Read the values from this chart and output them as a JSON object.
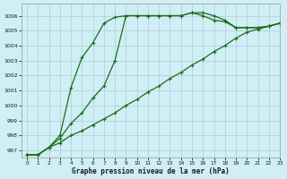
{
  "xlabel": "Graphe pression niveau de la mer (hPa)",
  "bg_color": "#d0eef5",
  "grid_color": "#b0ccd8",
  "line_color": "#1a6e1a",
  "xlim": [
    -0.5,
    23
  ],
  "ylim": [
    996.5,
    1006.8
  ],
  "xticks": [
    0,
    1,
    2,
    3,
    4,
    5,
    6,
    7,
    8,
    9,
    10,
    11,
    12,
    13,
    14,
    15,
    16,
    17,
    18,
    19,
    20,
    21,
    22,
    23
  ],
  "yticks": [
    997,
    998,
    999,
    1000,
    1001,
    1002,
    1003,
    1004,
    1005,
    1006
  ],
  "series1_x": [
    0,
    1,
    2,
    3,
    4,
    5,
    6,
    7,
    8,
    9,
    10,
    11,
    12,
    13,
    14,
    15,
    16,
    17,
    18,
    19,
    20,
    21,
    22,
    23
  ],
  "series1_y": [
    996.7,
    996.7,
    997.2,
    997.8,
    998.8,
    999.5,
    1000.5,
    1001.3,
    1003.0,
    1006.0,
    1006.0,
    1006.0,
    1006.0,
    1006.0,
    1006.0,
    1006.2,
    1006.2,
    1006.0,
    1005.7,
    1005.2,
    1005.2,
    1005.2,
    1005.3,
    1005.5
  ],
  "series2_x": [
    0,
    1,
    2,
    3,
    4,
    5,
    6,
    7,
    8,
    9,
    10,
    11,
    12,
    13,
    14,
    15,
    16,
    17,
    18,
    19,
    20,
    21,
    22,
    23
  ],
  "series2_y": [
    996.7,
    996.7,
    997.2,
    998.0,
    1001.2,
    1003.2,
    1004.2,
    1005.5,
    1005.9,
    1006.0,
    1006.0,
    1006.0,
    1006.0,
    1006.0,
    1006.0,
    1006.2,
    1006.0,
    1005.7,
    1005.6,
    1005.2,
    1005.2,
    1005.2,
    1005.3,
    1005.5
  ],
  "series3_x": [
    0,
    1,
    2,
    3,
    4,
    5,
    6,
    7,
    8,
    9,
    10,
    11,
    12,
    13,
    14,
    15,
    16,
    17,
    18,
    19,
    20,
    21,
    22,
    23
  ],
  "series3_y": [
    996.7,
    996.7,
    997.2,
    997.5,
    998.0,
    998.3,
    998.7,
    999.1,
    999.5,
    1000.0,
    1000.4,
    1000.9,
    1001.3,
    1001.8,
    1002.2,
    1002.7,
    1003.1,
    1003.6,
    1004.0,
    1004.5,
    1004.9,
    1005.1,
    1005.3,
    1005.5
  ],
  "marker": "+",
  "marker_size": 3,
  "linewidth": 0.9
}
